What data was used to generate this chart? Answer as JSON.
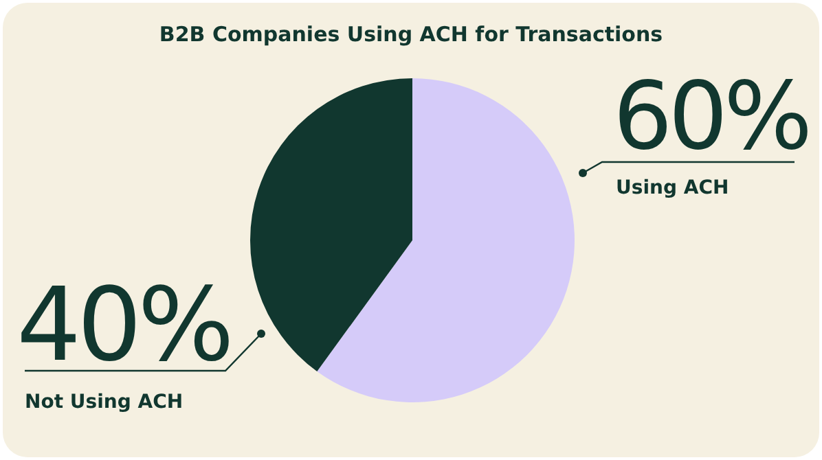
{
  "chart_data": {
    "type": "pie",
    "title": "B2B Companies Using ACH for Transactions",
    "categories": [
      "Using ACH",
      "Not Using ACH"
    ],
    "values": [
      60,
      40
    ],
    "colors": [
      "#d5cbf9",
      "#11372f"
    ],
    "value_labels": [
      "60%",
      "40%"
    ]
  }
}
